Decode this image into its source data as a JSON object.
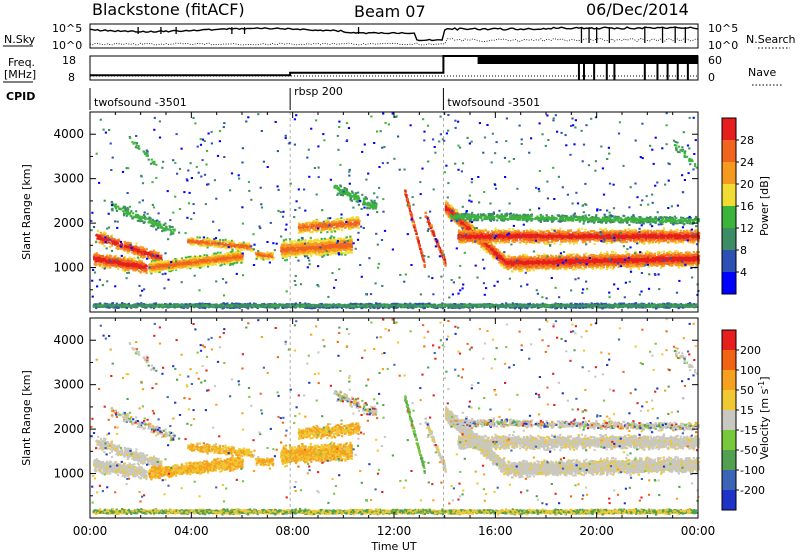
{
  "header": {
    "station": "Blackstone (fitACF)",
    "beam": "Beam 07",
    "date": "06/Dec/2014"
  },
  "panels": {
    "nsky_label": "N.Sky",
    "nsky_ticks": [
      "10^5",
      "10^0"
    ],
    "nsearch_label": "N.Search",
    "nsearch_ticks": [
      "10^5",
      "10^0"
    ],
    "freq_label_1": "Freq.",
    "freq_label_2": "[MHz]",
    "freq_ticks": [
      "18",
      "8"
    ],
    "nave_label": "Nave",
    "nave_ticks": [
      "60",
      "0"
    ],
    "cpid_label": "CPID"
  },
  "chart_data": [
    {
      "type": "line",
      "name": "cpid",
      "segments": [
        {
          "label": "twofsound -3501",
          "start": 0.0,
          "end": 7.9
        },
        {
          "label": "rbsp 200",
          "start": 7.9,
          "end": 13.95
        },
        {
          "label": "twofsound -3501",
          "start": 13.95,
          "end": 24.0
        }
      ]
    },
    {
      "type": "line",
      "name": "frequency",
      "ylim": [
        8,
        18
      ],
      "x": [
        0,
        7.9,
        7.9,
        13.95,
        13.95,
        24
      ],
      "y": [
        10,
        10,
        11,
        11,
        18,
        18
      ]
    },
    {
      "type": "heatmap",
      "name": "power",
      "ylabel": "Slant Range [km]",
      "xlim": [
        0,
        24
      ],
      "ylim": [
        0,
        4500
      ],
      "yticks": [
        1000,
        2000,
        3000,
        4000
      ],
      "colorbar": {
        "label": "Power [dB]",
        "ticks": [
          "4",
          "8",
          "12",
          "16",
          "20",
          "24",
          "28"
        ],
        "colors": [
          "#0000ff",
          "#2d50b4",
          "#3c8c64",
          "#3cb43c",
          "#f0dc32",
          "#f59a1e",
          "#f0641e",
          "#e61e1e"
        ]
      }
    },
    {
      "type": "heatmap",
      "name": "velocity",
      "ylabel": "Slant Range [km]",
      "xlabel": "Time UT",
      "xlim": [
        0,
        24
      ],
      "ylim": [
        0,
        4500
      ],
      "yticks": [
        1000,
        2000,
        3000,
        4000
      ],
      "xticks": [
        "00:00",
        "04:00",
        "08:00",
        "12:00",
        "16:00",
        "20:00",
        "00:00"
      ],
      "colorbar": {
        "label": "Velocity [m s-1]",
        "label_main": "Velocity [m s",
        "label_sup": "-1",
        "label_end": "]",
        "ticks": [
          "200",
          "100",
          "50",
          "15",
          "-15",
          "-50",
          "-100",
          "-200"
        ],
        "colors": [
          "#1e32c8",
          "#3c64b4",
          "#50a050",
          "#78c83c",
          "#c8c8c0",
          "#f0c832",
          "#f5a01e",
          "#f06414",
          "#e61e1e"
        ]
      }
    }
  ]
}
